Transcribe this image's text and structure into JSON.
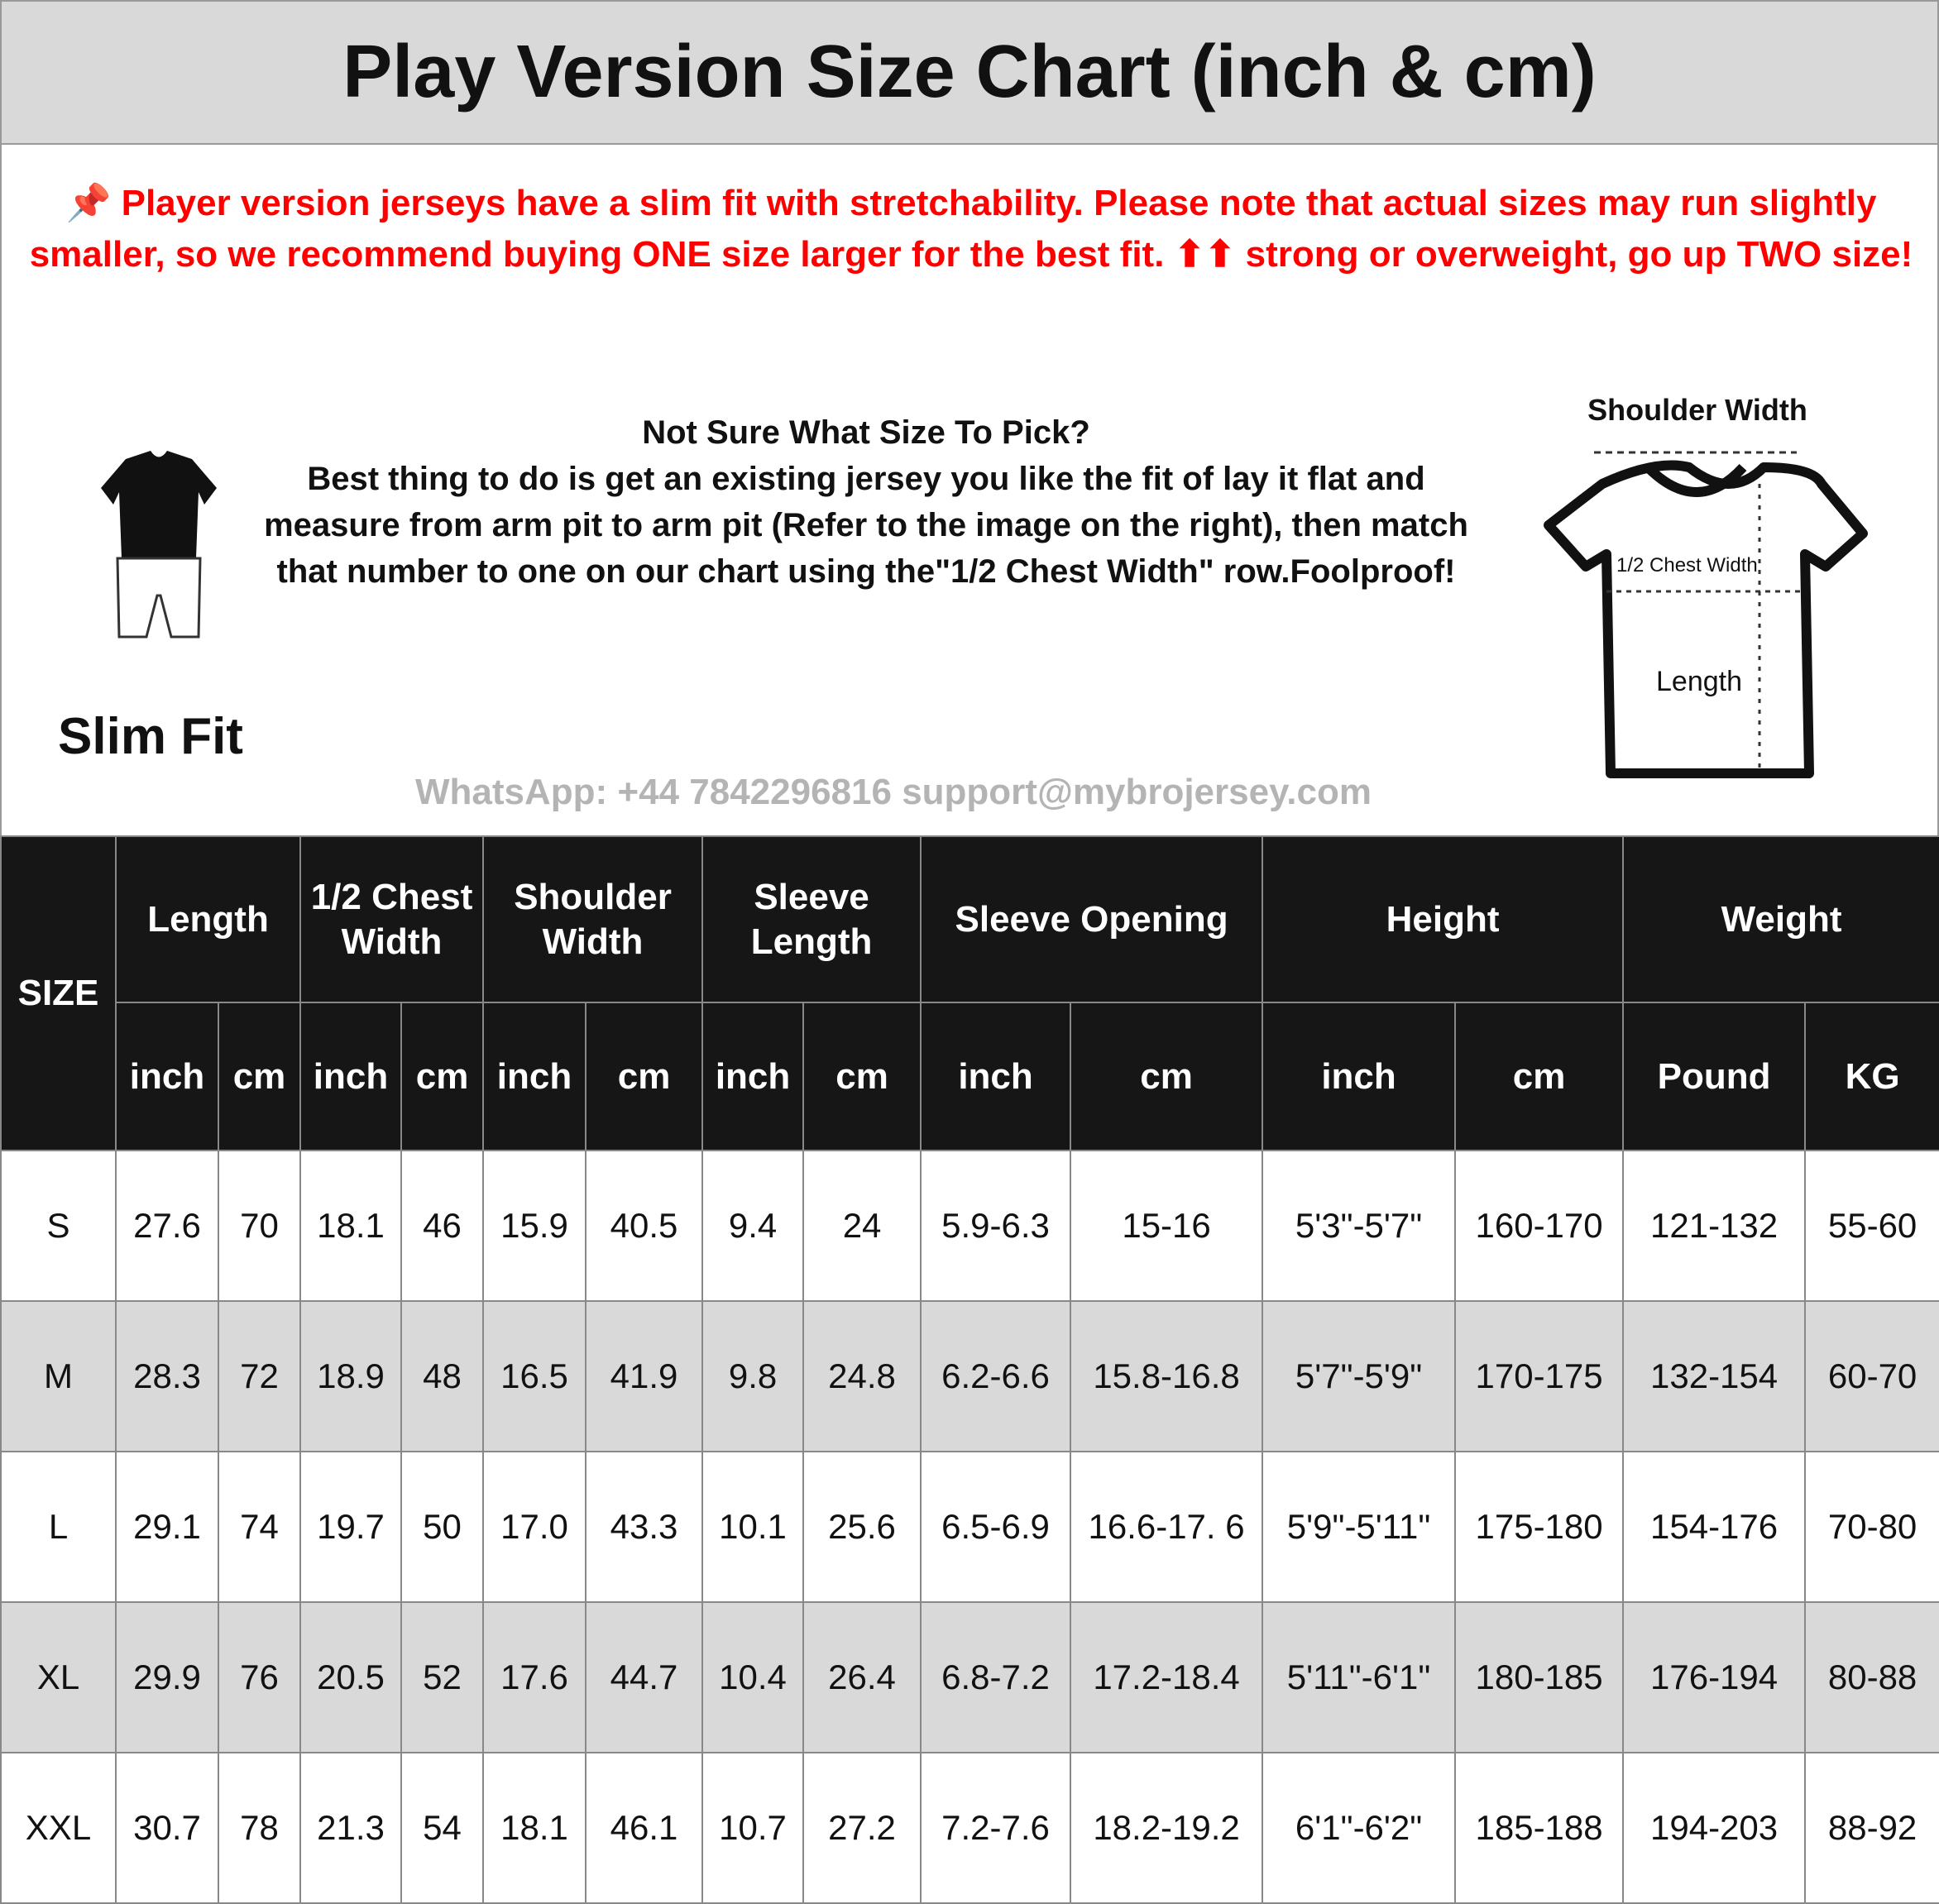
{
  "title": "Play Version Size Chart (inch & cm)",
  "notice": {
    "pin_icon": "pushpin-icon",
    "line1": "Player version jerseys have a slim fit with stretchability. Please note that actual sizes may run",
    "line2": "slightly smaller, so we recommend buying ONE size larger for the best fit. ⬆⬆ strong or overweight,",
    "line3": "go up TWO size!",
    "help_heading": "Not Sure What Size To Pick?",
    "help_lines": [
      "Best thing to do is get an existing jersey you like the fit of lay it",
      "flat and measure from arm pit to arm pit (Refer to the image on",
      "the right), then match that number to one on our chart using",
      "the\"1/2 Chest Width\" row.Foolproof!"
    ],
    "fit_label": "Slim Fit",
    "diagram": {
      "shoulder": "Shoulder Width",
      "chest": "1/2 Chest Width",
      "length": "Length"
    }
  },
  "watermark": "WhatsApp: +44 7842296816  support@mybrojersey.com",
  "table": {
    "size_header": "SIZE",
    "groups": [
      {
        "label": "Length",
        "units": [
          "inch",
          "cm"
        ]
      },
      {
        "label": "1/2 Chest Width",
        "units": [
          "inch",
          "cm"
        ]
      },
      {
        "label": "Shoulder Width",
        "units": [
          "inch",
          "cm"
        ]
      },
      {
        "label": "Sleeve Length",
        "units": [
          "inch",
          "cm"
        ]
      },
      {
        "label": "Sleeve Opening",
        "units": [
          "inch",
          "cm"
        ]
      },
      {
        "label": "Height",
        "units": [
          "inch",
          "cm"
        ]
      },
      {
        "label": "Weight",
        "units": [
          "Pound",
          "KG"
        ]
      }
    ],
    "rows": [
      [
        "S",
        "27.6",
        "70",
        "18.1",
        "46",
        "15.9",
        "40.5",
        "9.4",
        "24",
        "5.9-6.3",
        "15-16",
        "5'3\"-5'7\"",
        "160-170",
        "121-132",
        "55-60"
      ],
      [
        "M",
        "28.3",
        "72",
        "18.9",
        "48",
        "16.5",
        "41.9",
        "9.8",
        "24.8",
        "6.2-6.6",
        "15.8-16.8",
        "5'7\"-5'9\"",
        "170-175",
        "132-154",
        "60-70"
      ],
      [
        "L",
        "29.1",
        "74",
        "19.7",
        "50",
        "17.0",
        "43.3",
        "10.1",
        "25.6",
        "6.5-6.9",
        "16.6-17. 6",
        "5'9\"-5'11\"",
        "175-180",
        "154-176",
        "70-80"
      ],
      [
        "XL",
        "29.9",
        "76",
        "20.5",
        "52",
        "17.6",
        "44.7",
        "10.4",
        "26.4",
        "6.8-7.2",
        "17.2-18.4",
        "5'11\"-6'1\"",
        "180-185",
        "176-194",
        "80-88"
      ],
      [
        "XXL",
        "30.7",
        "78",
        "21.3",
        "54",
        "18.1",
        "46.1",
        "10.7",
        "27.2",
        "7.2-7.6",
        "18.2-19.2",
        "6'1\"-6'2\"",
        "185-188",
        "194-203",
        "88-92"
      ]
    ]
  },
  "colors": {
    "header_bg": "#161616",
    "title_bg": "#d9d9d9",
    "alt_row": "#d9d9d9",
    "notice_red": "#ff0000"
  }
}
